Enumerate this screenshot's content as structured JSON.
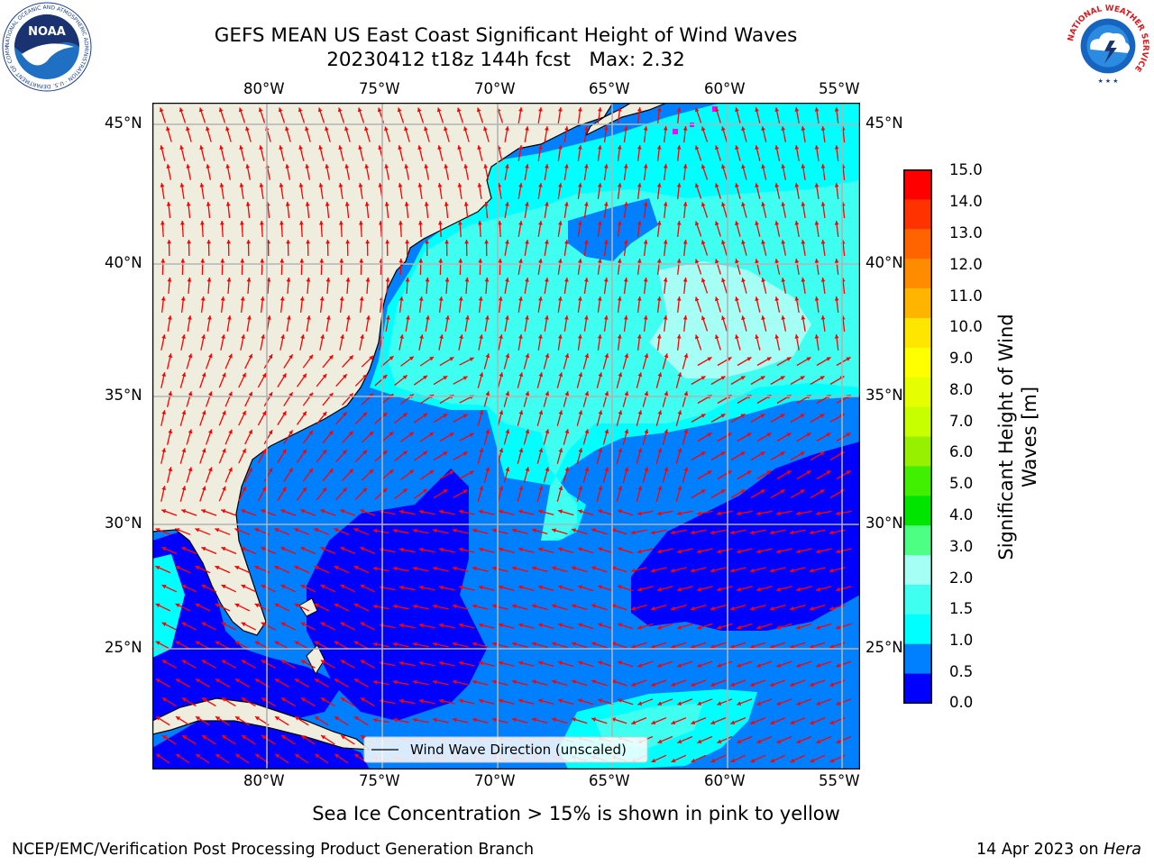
{
  "header": {
    "title_line1": "GEFS MEAN US East Coast Significant Height of Wind Waves",
    "title_line2": "20230412 t18z 144h fcst   Max: 2.32"
  },
  "logos": {
    "noaa_text": "NOAA",
    "noaa_ring_text": "NATIONAL OCEANIC AND ATMOSPHERIC ADMINISTRATION · U.S. DEPARTMENT OF COMMERCE ·",
    "nws_ring_text": "NATIONAL WEATHER SERVICE"
  },
  "map": {
    "lon_labels": [
      "80°W",
      "75°W",
      "70°W",
      "65°W",
      "60°W",
      "55°W"
    ],
    "lat_labels": [
      "45°N",
      "40°N",
      "35°N",
      "30°N",
      "25°N"
    ],
    "legend_label": "Wind Wave Direction (unscaled)",
    "colors": {
      "land": "#efedde",
      "arrow": "#ff0000",
      "grid": "#b3b3b3",
      "ice": "#ff00ff"
    }
  },
  "colorbar": {
    "label_line1": "Significant Height of Wind",
    "label_line2": "Waves [m]",
    "ticks": [
      "15.0",
      "14.0",
      "13.0",
      "12.0",
      "11.0",
      "10.0",
      "9.0",
      "8.0",
      "7.0",
      "6.0",
      "5.0",
      "4.0",
      "3.0",
      "2.0",
      "1.5",
      "1.0",
      "0.5",
      "0.0"
    ],
    "colors_bottom_to_top": [
      "#0000ff",
      "#0080ff",
      "#00ffff",
      "#3ffff0",
      "#a6fff5",
      "#4dff82",
      "#00e500",
      "#41f000",
      "#96f000",
      "#c8ff00",
      "#e6ff00",
      "#ffff00",
      "#ffe600",
      "#ffb400",
      "#ff8c00",
      "#ff6400",
      "#ff3200",
      "#ff0000"
    ]
  },
  "footer": {
    "sea_ice_note": "Sea Ice Concentration > 15% is shown in pink to yellow",
    "producer": "NCEP/EMC/Verification Post Processing Product Generation Branch",
    "date": "14 Apr 2023 on ",
    "machine": "Hera"
  }
}
